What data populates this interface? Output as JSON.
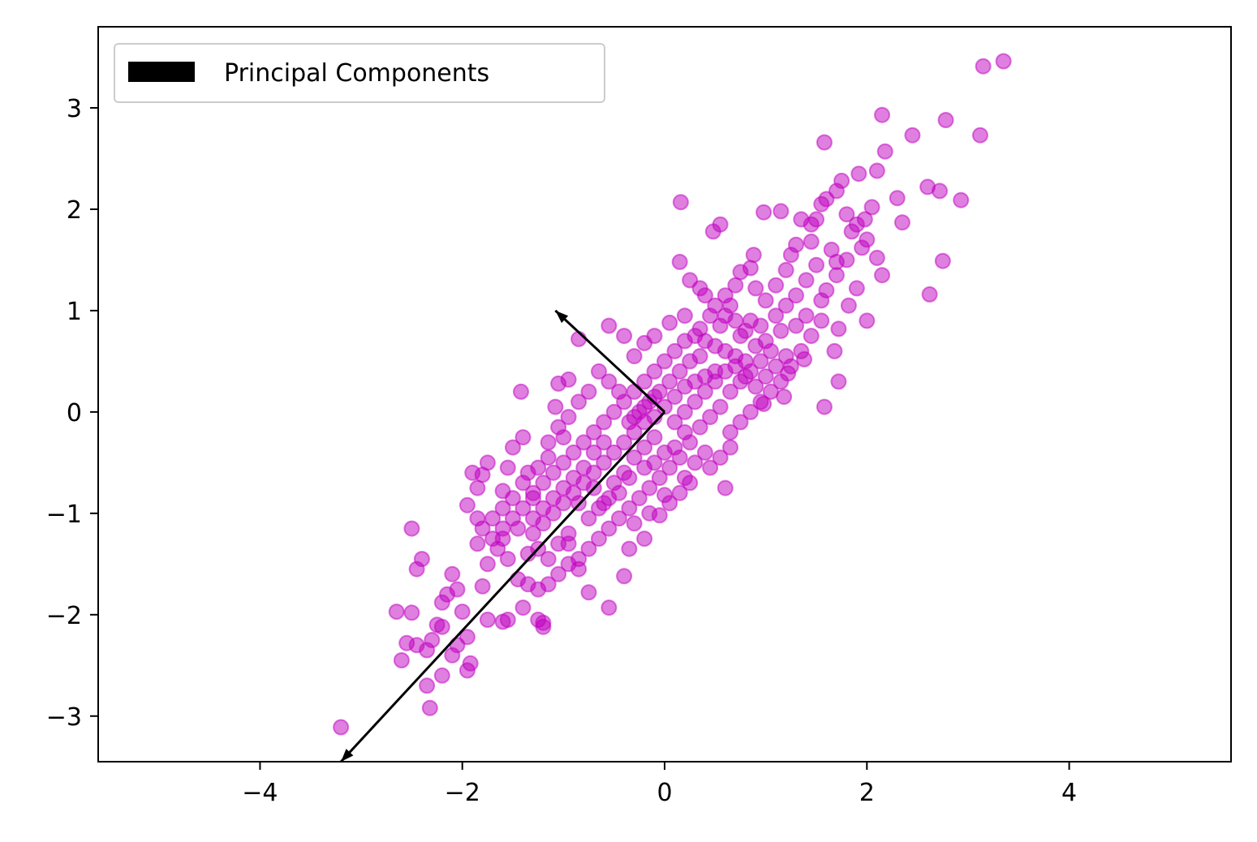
{
  "chart_data": {
    "type": "scatter",
    "title": "",
    "xlabel": "",
    "ylabel": "",
    "xlim": [
      -5.6,
      5.6
    ],
    "ylim": [
      -3.45,
      3.8
    ],
    "xticks": [
      -4,
      -2,
      0,
      2,
      4
    ],
    "xtick_labels": [
      "−4",
      "−2",
      "0",
      "2",
      "4"
    ],
    "yticks": [
      -3,
      -2,
      -1,
      0,
      1,
      2,
      3
    ],
    "ytick_labels": [
      "−3",
      "−2",
      "−1",
      "0",
      "1",
      "2",
      "3"
    ],
    "grid": false,
    "legend": {
      "position": "top-left",
      "entries": [
        {
          "label": "Principal Components",
          "color": "#000000"
        }
      ]
    },
    "scatter_color": "#bf00bf",
    "scatter_alpha": 0.5,
    "points": [
      [
        3.35,
        3.46
      ],
      [
        3.15,
        3.41
      ],
      [
        2.15,
        2.93
      ],
      [
        2.78,
        2.88
      ],
      [
        3.12,
        2.73
      ],
      [
        2.45,
        2.73
      ],
      [
        2.18,
        2.57
      ],
      [
        1.58,
        2.66
      ],
      [
        2.3,
        2.11
      ],
      [
        2.6,
        2.22
      ],
      [
        2.72,
        2.18
      ],
      [
        2.93,
        2.09
      ],
      [
        2.35,
        1.87
      ],
      [
        2.75,
        1.49
      ],
      [
        2.62,
        1.16
      ],
      [
        2.1,
        2.38
      ],
      [
        1.92,
        2.35
      ],
      [
        1.75,
        2.28
      ],
      [
        1.55,
        2.05
      ],
      [
        1.35,
        1.9
      ],
      [
        1.15,
        1.98
      ],
      [
        0.98,
        1.97
      ],
      [
        0.88,
        1.55
      ],
      [
        0.55,
        1.85
      ],
      [
        0.48,
        1.78
      ],
      [
        0.16,
        2.07
      ],
      [
        0.15,
        1.48
      ],
      [
        0.25,
        1.3
      ],
      [
        0.35,
        1.22
      ],
      [
        0.85,
        1.42
      ],
      [
        1.25,
        1.55
      ],
      [
        1.45,
        1.68
      ],
      [
        1.7,
        1.48
      ],
      [
        1.95,
        1.62
      ],
      [
        2.1,
        1.52
      ],
      [
        2.15,
        1.35
      ],
      [
        1.98,
        1.9
      ],
      [
        2.05,
        2.02
      ],
      [
        1.85,
        1.78
      ],
      [
        1.65,
        1.6
      ],
      [
        1.9,
        1.22
      ],
      [
        2.0,
        0.9
      ],
      [
        1.82,
        1.05
      ],
      [
        1.72,
        0.82
      ],
      [
        1.68,
        0.6
      ],
      [
        1.72,
        0.3
      ],
      [
        1.58,
        0.05
      ],
      [
        1.38,
        0.52
      ],
      [
        1.22,
        0.38
      ],
      [
        1.18,
        0.15
      ],
      [
        0.98,
        0.08
      ],
      [
        0.65,
        -0.35
      ],
      [
        0.6,
        -0.75
      ],
      [
        0.2,
        -0.65
      ],
      [
        0.0,
        -0.82
      ],
      [
        -0.05,
        -1.02
      ],
      [
        -0.2,
        -1.25
      ],
      [
        -0.35,
        -1.35
      ],
      [
        -0.4,
        -1.62
      ],
      [
        -0.55,
        -1.93
      ],
      [
        -0.75,
        -1.78
      ],
      [
        -0.85,
        -1.55
      ],
      [
        -0.95,
        -1.3
      ],
      [
        -1.05,
        -1.3
      ],
      [
        -1.25,
        -1.35
      ],
      [
        -1.2,
        -2.08
      ],
      [
        -1.25,
        -2.05
      ],
      [
        -1.2,
        -2.12
      ],
      [
        -1.55,
        -2.05
      ],
      [
        -1.6,
        -2.07
      ],
      [
        -1.4,
        -1.93
      ],
      [
        -1.75,
        -2.05
      ],
      [
        -2.0,
        -1.97
      ],
      [
        -2.05,
        -1.75
      ],
      [
        -2.15,
        -1.8
      ],
      [
        -2.1,
        -1.6
      ],
      [
        -2.2,
        -1.88
      ],
      [
        -2.25,
        -2.1
      ],
      [
        -2.2,
        -2.12
      ],
      [
        -2.05,
        -2.3
      ],
      [
        -2.1,
        -2.4
      ],
      [
        -2.2,
        -2.6
      ],
      [
        -1.95,
        -2.55
      ],
      [
        -1.92,
        -2.48
      ],
      [
        -1.95,
        -2.22
      ],
      [
        -2.3,
        -2.25
      ],
      [
        -2.35,
        -2.35
      ],
      [
        -2.45,
        -2.3
      ],
      [
        -2.55,
        -2.28
      ],
      [
        -2.6,
        -2.45
      ],
      [
        -2.65,
        -1.97
      ],
      [
        -2.5,
        -1.98
      ],
      [
        -2.45,
        -1.55
      ],
      [
        -2.4,
        -1.45
      ],
      [
        -2.5,
        -1.15
      ],
      [
        -2.35,
        -2.7
      ],
      [
        -2.32,
        -2.92
      ],
      [
        -3.2,
        -3.11
      ],
      [
        -1.8,
        -1.72
      ],
      [
        -1.75,
        -1.5
      ],
      [
        -1.85,
        -1.3
      ],
      [
        -1.85,
        -1.05
      ],
      [
        -1.95,
        -0.92
      ],
      [
        -1.85,
        -0.75
      ],
      [
        -1.9,
        -0.6
      ],
      [
        -1.8,
        -0.62
      ],
      [
        -1.75,
        -0.5
      ],
      [
        -1.6,
        -0.78
      ],
      [
        -1.55,
        -0.55
      ],
      [
        -1.5,
        -0.35
      ],
      [
        -1.4,
        -0.25
      ],
      [
        -1.42,
        0.2
      ],
      [
        -1.3,
        -0.85
      ],
      [
        -1.35,
        -0.6
      ],
      [
        -1.15,
        -0.45
      ],
      [
        -1.0,
        -0.25
      ],
      [
        -1.08,
        0.05
      ],
      [
        -1.05,
        0.28
      ],
      [
        -0.95,
        0.32
      ],
      [
        -0.85,
        0.72
      ],
      [
        -0.55,
        0.85
      ],
      [
        -0.4,
        0.75
      ],
      [
        -0.3,
        0.55
      ],
      [
        -0.2,
        0.68
      ],
      [
        -0.1,
        0.75
      ],
      [
        0.05,
        0.88
      ],
      [
        0.2,
        0.95
      ],
      [
        0.35,
        0.82
      ],
      [
        0.45,
        0.95
      ],
      [
        0.55,
        0.85
      ],
      [
        0.6,
        1.15
      ],
      [
        0.7,
        1.25
      ],
      [
        0.75,
        1.38
      ],
      [
        0.9,
        1.22
      ],
      [
        1.0,
        1.1
      ],
      [
        1.1,
        0.95
      ],
      [
        1.2,
        1.05
      ],
      [
        1.3,
        1.15
      ],
      [
        1.4,
        1.3
      ],
      [
        1.5,
        1.45
      ],
      [
        1.55,
        1.1
      ],
      [
        1.4,
        0.95
      ],
      [
        1.3,
        0.85
      ],
      [
        1.15,
        0.8
      ],
      [
        1.05,
        0.6
      ],
      [
        0.95,
        0.5
      ],
      [
        0.85,
        0.4
      ],
      [
        0.75,
        0.3
      ],
      [
        0.65,
        0.2
      ],
      [
        0.55,
        0.05
      ],
      [
        0.45,
        -0.05
      ],
      [
        0.35,
        -0.15
      ],
      [
        0.25,
        -0.3
      ],
      [
        0.15,
        -0.45
      ],
      [
        0.05,
        -0.55
      ],
      [
        -0.05,
        -0.65
      ],
      [
        -0.15,
        -0.75
      ],
      [
        -0.25,
        -0.85
      ],
      [
        -0.35,
        -0.95
      ],
      [
        -0.45,
        -1.05
      ],
      [
        -0.55,
        -1.15
      ],
      [
        -0.65,
        -1.25
      ],
      [
        -0.75,
        -1.35
      ],
      [
        -0.85,
        -1.45
      ],
      [
        -0.95,
        -1.5
      ],
      [
        -1.05,
        -1.6
      ],
      [
        -1.15,
        -1.7
      ],
      [
        -1.25,
        -1.75
      ],
      [
        -1.35,
        -1.7
      ],
      [
        -1.45,
        -1.65
      ],
      [
        -1.55,
        -1.45
      ],
      [
        -1.65,
        -1.35
      ],
      [
        -1.7,
        -1.25
      ],
      [
        -1.6,
        -1.15
      ],
      [
        -1.5,
        -1.05
      ],
      [
        -1.4,
        -0.95
      ],
      [
        -1.3,
        -0.8
      ],
      [
        -1.2,
        -0.7
      ],
      [
        -1.1,
        -0.6
      ],
      [
        -1.0,
        -0.5
      ],
      [
        -0.9,
        -0.4
      ],
      [
        -0.8,
        -0.3
      ],
      [
        -0.7,
        -0.2
      ],
      [
        -0.6,
        -0.1
      ],
      [
        -0.5,
        0.0
      ],
      [
        -0.4,
        0.1
      ],
      [
        -0.3,
        0.2
      ],
      [
        -0.2,
        0.3
      ],
      [
        -0.1,
        0.4
      ],
      [
        0.0,
        0.5
      ],
      [
        0.1,
        0.6
      ],
      [
        0.2,
        0.7
      ],
      [
        0.3,
        0.75
      ],
      [
        0.4,
        0.7
      ],
      [
        0.5,
        0.65
      ],
      [
        0.6,
        0.6
      ],
      [
        0.7,
        0.55
      ],
      [
        0.8,
        0.5
      ],
      [
        0.9,
        0.65
      ],
      [
        1.0,
        0.7
      ],
      [
        0.8,
        0.8
      ],
      [
        0.7,
        0.9
      ],
      [
        0.6,
        0.95
      ],
      [
        0.5,
        0.4
      ],
      [
        0.4,
        0.35
      ],
      [
        0.3,
        0.3
      ],
      [
        0.2,
        0.25
      ],
      [
        0.1,
        0.15
      ],
      [
        0.0,
        0.05
      ],
      [
        -0.1,
        -0.05
      ],
      [
        -0.2,
        -0.1
      ],
      [
        -0.3,
        -0.2
      ],
      [
        -0.4,
        -0.3
      ],
      [
        -0.5,
        -0.4
      ],
      [
        -0.6,
        -0.5
      ],
      [
        -0.7,
        -0.6
      ],
      [
        -0.8,
        -0.7
      ],
      [
        -0.9,
        -0.8
      ],
      [
        -1.0,
        -0.9
      ],
      [
        -1.1,
        -1.0
      ],
      [
        -1.2,
        -1.1
      ],
      [
        -1.3,
        -1.2
      ],
      [
        -0.6,
        -0.9
      ],
      [
        -0.5,
        -0.7
      ],
      [
        -0.4,
        -0.6
      ],
      [
        -0.3,
        -0.45
      ],
      [
        -0.2,
        -0.35
      ],
      [
        -0.1,
        -0.25
      ],
      [
        0.1,
        -0.1
      ],
      [
        0.2,
        0.0
      ],
      [
        0.3,
        0.1
      ],
      [
        0.4,
        0.2
      ],
      [
        0.5,
        0.3
      ],
      [
        0.6,
        0.4
      ],
      [
        0.7,
        0.45
      ],
      [
        0.8,
        0.35
      ],
      [
        0.9,
        0.25
      ],
      [
        1.0,
        0.35
      ],
      [
        1.1,
        0.45
      ],
      [
        1.2,
        0.55
      ],
      [
        0.3,
        -0.5
      ],
      [
        0.4,
        -0.4
      ],
      [
        0.2,
        -0.2
      ],
      [
        -0.1,
        0.15
      ],
      [
        -0.2,
        0.05
      ],
      [
        -0.3,
        -0.05
      ],
      [
        -0.45,
        0.2
      ],
      [
        -0.55,
        0.3
      ],
      [
        -0.65,
        0.4
      ],
      [
        -0.75,
        0.2
      ],
      [
        -0.85,
        0.1
      ],
      [
        -0.95,
        -0.05
      ],
      [
        -1.05,
        -0.15
      ],
      [
        -1.15,
        -0.3
      ],
      [
        -1.25,
        -0.55
      ],
      [
        -1.4,
        -0.7
      ],
      [
        -1.5,
        -0.85
      ],
      [
        -1.6,
        -0.95
      ],
      [
        -1.7,
        -1.05
      ],
      [
        -1.8,
        -1.15
      ],
      [
        -0.3,
        -1.1
      ],
      [
        -0.15,
        -1.0
      ],
      [
        0.05,
        -0.9
      ],
      [
        0.15,
        -0.8
      ],
      [
        0.25,
        -0.7
      ],
      [
        0.45,
        -0.55
      ],
      [
        0.55,
        -0.45
      ],
      [
        0.65,
        -0.2
      ],
      [
        0.75,
        -0.1
      ],
      [
        0.85,
        0.0
      ],
      [
        0.95,
        0.1
      ],
      [
        1.05,
        0.2
      ],
      [
        1.15,
        0.3
      ],
      [
        1.25,
        0.45
      ],
      [
        1.35,
        0.6
      ],
      [
        1.45,
        0.75
      ],
      [
        1.55,
        0.9
      ],
      [
        1.6,
        1.2
      ],
      [
        1.7,
        1.35
      ],
      [
        1.8,
        1.5
      ],
      [
        0.05,
        0.3
      ],
      [
        0.15,
        0.4
      ],
      [
        0.25,
        0.5
      ],
      [
        0.35,
        0.55
      ],
      [
        -0.05,
        0.2
      ],
      [
        -0.15,
        0.1
      ],
      [
        -0.25,
        0.0
      ],
      [
        -0.35,
        -0.1
      ],
      [
        -0.6,
        -0.3
      ],
      [
        -0.7,
        -0.4
      ],
      [
        -0.8,
        -0.55
      ],
      [
        -0.9,
        -0.65
      ],
      [
        -1.0,
        -0.75
      ],
      [
        -1.1,
        -0.85
      ],
      [
        -1.2,
        -0.95
      ],
      [
        -1.3,
        -1.05
      ],
      [
        0.5,
        1.05
      ],
      [
        0.4,
        1.15
      ],
      [
        0.65,
        1.05
      ],
      [
        0.75,
        0.75
      ],
      [
        0.85,
        0.9
      ],
      [
        0.95,
        0.85
      ],
      [
        1.1,
        1.25
      ],
      [
        1.2,
        1.4
      ],
      [
        0.1,
        -0.35
      ],
      [
        0.0,
        -0.4
      ],
      [
        -0.1,
        -0.5
      ],
      [
        -0.2,
        -0.55
      ],
      [
        -0.35,
        -0.65
      ],
      [
        -0.45,
        -0.8
      ],
      [
        -0.55,
        -0.85
      ],
      [
        -0.65,
        -0.95
      ],
      [
        -1.6,
        -1.25
      ],
      [
        -1.45,
        -1.15
      ],
      [
        -1.35,
        -1.4
      ],
      [
        -1.15,
        -1.45
      ],
      [
        -0.95,
        -1.2
      ],
      [
        -0.75,
        -1.05
      ],
      [
        -0.85,
        -0.9
      ],
      [
        -0.7,
        -0.75
      ],
      [
        1.3,
        1.65
      ],
      [
        1.45,
        1.85
      ],
      [
        1.5,
        1.9
      ],
      [
        1.6,
        2.1
      ],
      [
        1.7,
        2.18
      ],
      [
        1.8,
        1.95
      ],
      [
        1.9,
        1.85
      ],
      [
        2.0,
        1.7
      ]
    ],
    "principal_components": [
      {
        "from": [
          0,
          0
        ],
        "to": [
          -3.2,
          -3.45
        ]
      },
      {
        "from": [
          0,
          0
        ],
        "to": [
          -1.08,
          1.0
        ]
      }
    ]
  }
}
